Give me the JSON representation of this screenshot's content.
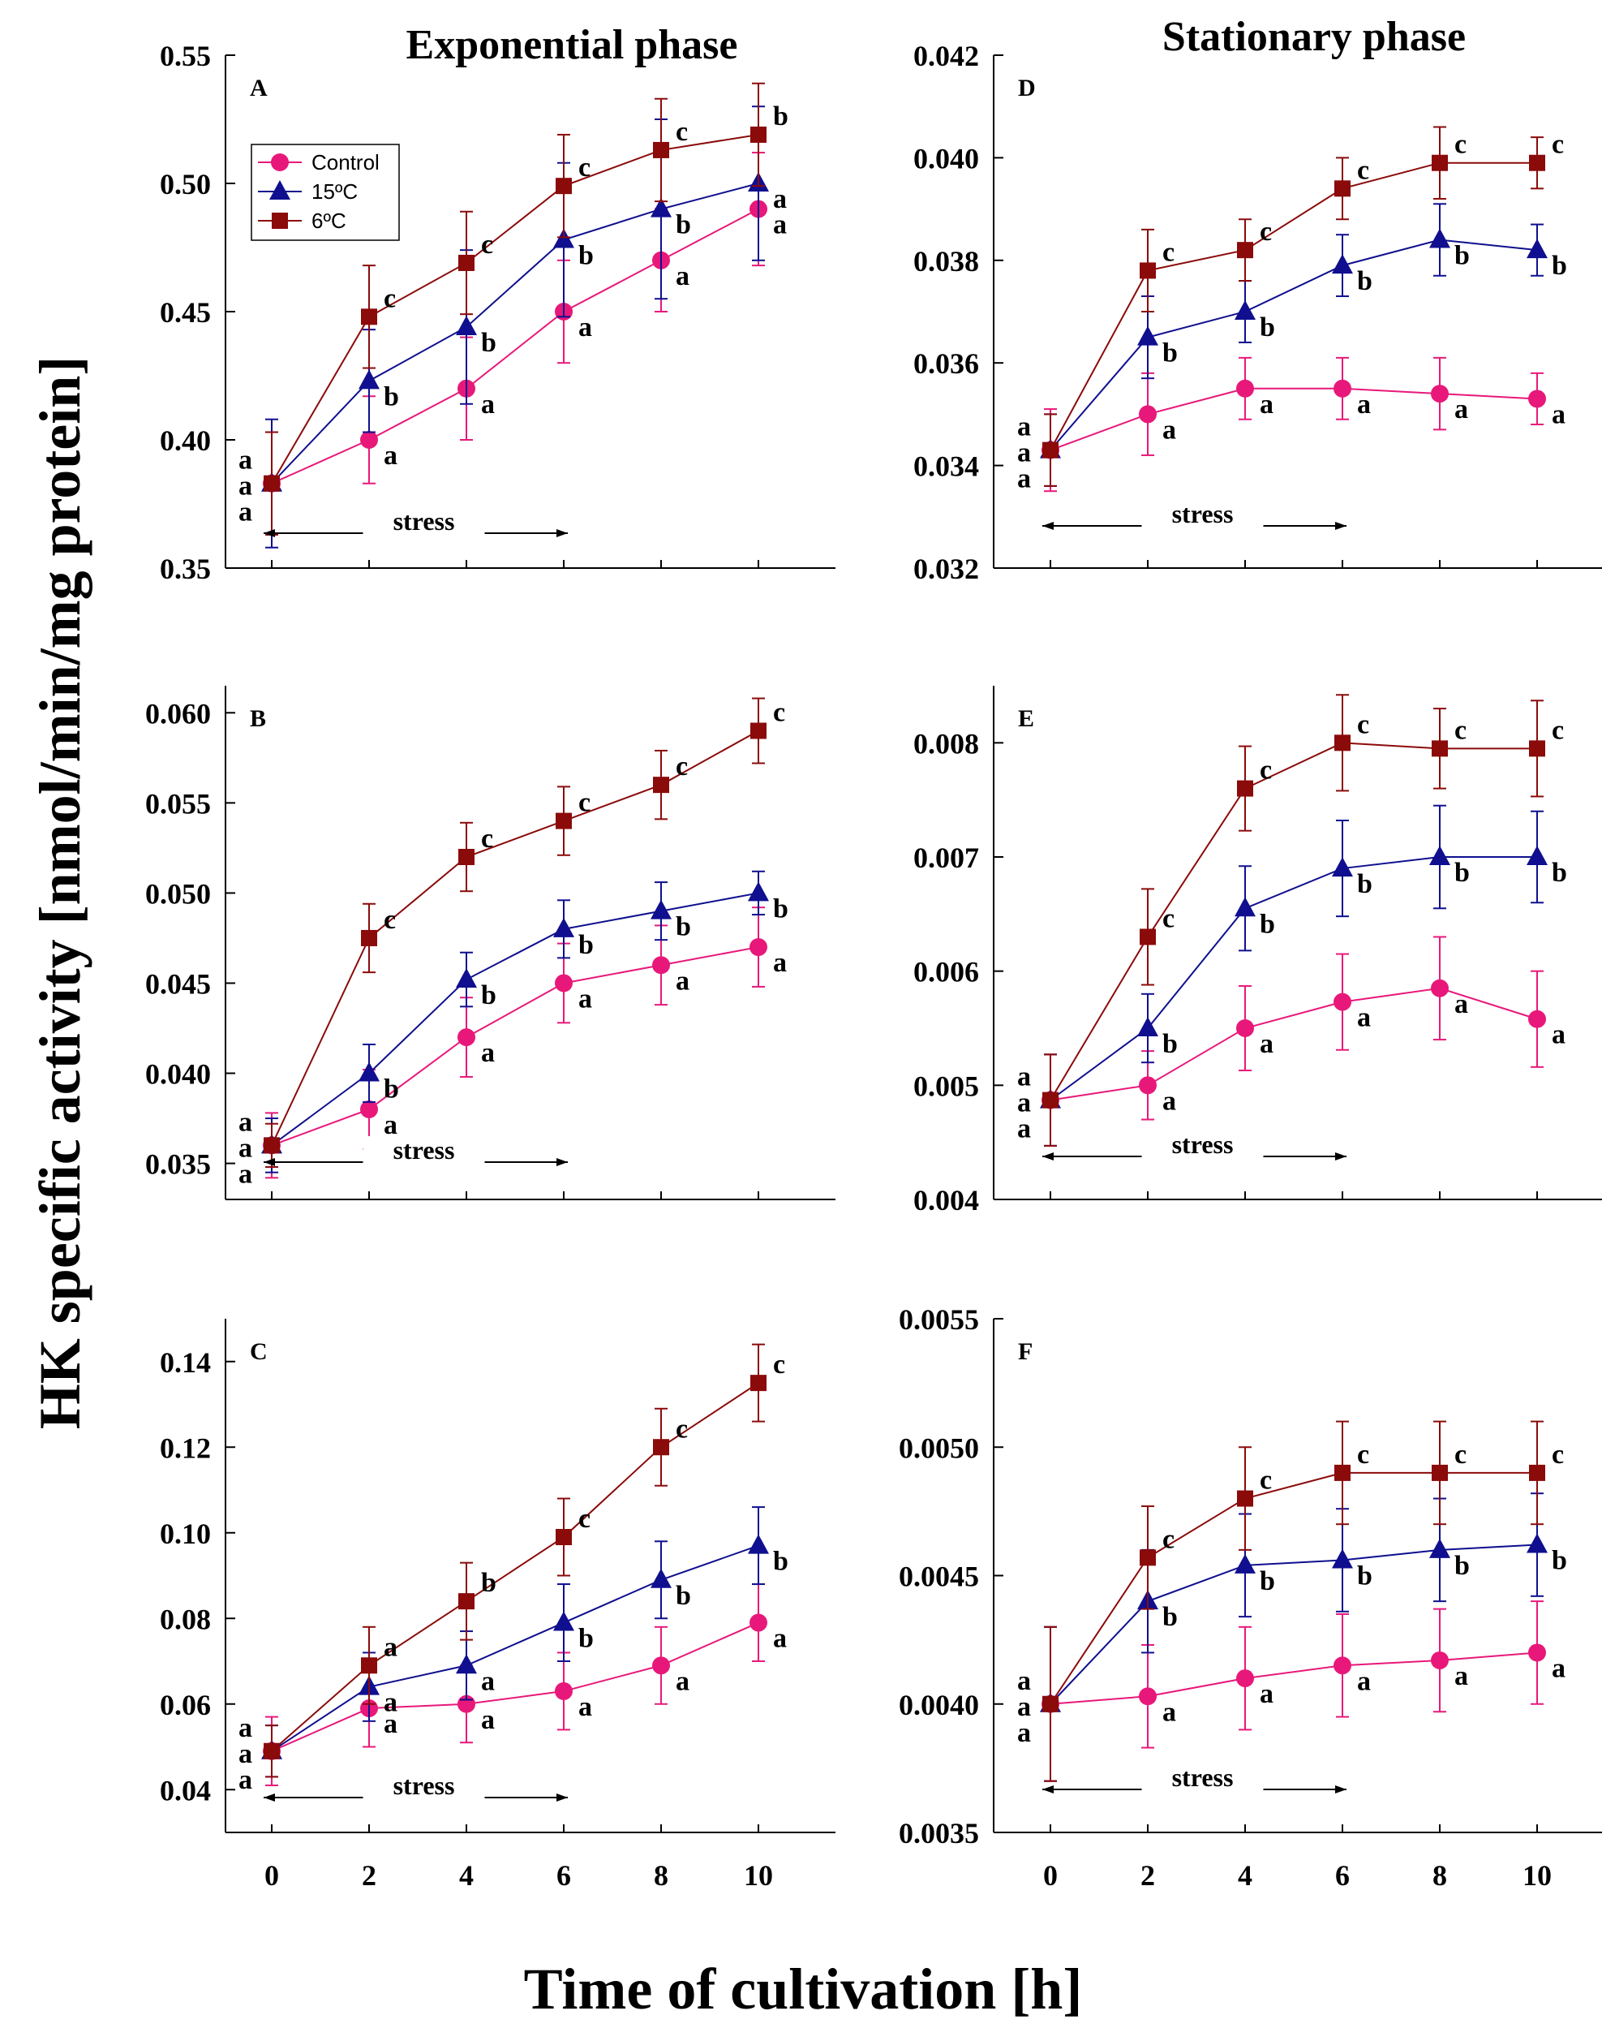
{
  "figure": {
    "col_titles": [
      "Exponential phase",
      "Stationary phase"
    ],
    "ylabel": "HK specific activity [nmol/min/mg protein]",
    "xlabel": "Time of cultivation [h]",
    "legend": [
      "Control",
      "15ºC",
      "6ºC"
    ],
    "stress_label": "stress"
  },
  "colors": {
    "control": "#e8187a",
    "c15": "#0f0f8f",
    "c6": "#8b0a0a"
  },
  "chart_data": [
    {
      "type": "line",
      "panel": "A",
      "title": "Exponential phase",
      "x": [
        0,
        2,
        4,
        6,
        8,
        10
      ],
      "ylim": [
        0.35,
        0.55
      ],
      "yticks": [
        "0.35",
        "0.40",
        "0.45",
        "0.50",
        "0.55"
      ],
      "series": [
        {
          "name": "Control",
          "values": [
            0.383,
            0.4,
            0.42,
            0.45,
            0.47,
            0.49
          ],
          "err": [
            0.02,
            0.017,
            0.02,
            0.02,
            0.02,
            0.022
          ],
          "letters": [
            "a",
            "a",
            "a",
            "a",
            "a",
            "a"
          ]
        },
        {
          "name": "15ºC",
          "values": [
            0.383,
            0.423,
            0.444,
            0.478,
            0.49,
            0.5
          ],
          "err": [
            0.025,
            0.02,
            0.03,
            0.03,
            0.035,
            0.03
          ],
          "letters": [
            "a",
            "b",
            "b",
            "b",
            "b",
            "a"
          ]
        },
        {
          "name": "6ºC",
          "values": [
            0.383,
            0.448,
            0.469,
            0.499,
            0.513,
            0.519
          ],
          "err": [
            0.02,
            0.02,
            0.02,
            0.02,
            0.02,
            0.02
          ],
          "letters": [
            "a",
            "c",
            "c",
            "c",
            "c",
            "b"
          ]
        }
      ]
    },
    {
      "type": "line",
      "panel": "B",
      "x": [
        0,
        2,
        4,
        6,
        8,
        10
      ],
      "ylim": [
        0.033,
        0.0615
      ],
      "yticks": [
        "0.035",
        "0.040",
        "0.045",
        "0.050",
        "0.055",
        "0.060"
      ],
      "series": [
        {
          "name": "Control",
          "values": [
            0.036,
            0.038,
            0.042,
            0.045,
            0.046,
            0.047
          ],
          "err": [
            0.0018,
            0.0022,
            0.0022,
            0.0022,
            0.0022,
            0.0022
          ],
          "letters": [
            "a",
            "a",
            "a",
            "a",
            "a",
            "a"
          ]
        },
        {
          "name": "15ºC",
          "values": [
            0.036,
            0.04,
            0.0452,
            0.048,
            0.049,
            0.05
          ],
          "err": [
            0.0015,
            0.0016,
            0.0015,
            0.0016,
            0.0016,
            0.0012
          ],
          "letters": [
            "a",
            "b",
            "b",
            "b",
            "b",
            "b"
          ]
        },
        {
          "name": "6ºC",
          "values": [
            0.036,
            0.0475,
            0.052,
            0.054,
            0.056,
            0.059
          ],
          "err": [
            0.0012,
            0.0019,
            0.0019,
            0.0019,
            0.0019,
            0.0018
          ],
          "letters": [
            "a",
            "c",
            "c",
            "c",
            "c",
            "c"
          ]
        }
      ]
    },
    {
      "type": "line",
      "panel": "C",
      "x": [
        0,
        2,
        4,
        6,
        8,
        10
      ],
      "ylim": [
        0.03,
        0.15
      ],
      "yticks": [
        "0.04",
        "0.06",
        "0.08",
        "0.10",
        "0.12",
        "0.14"
      ],
      "series": [
        {
          "name": "Control",
          "values": [
            0.049,
            0.059,
            0.06,
            0.063,
            0.069,
            0.079
          ],
          "err": [
            0.008,
            0.009,
            0.009,
            0.009,
            0.009,
            0.009
          ],
          "letters": [
            "a",
            "a",
            "a",
            "a",
            "a",
            "a"
          ]
        },
        {
          "name": "15ºC",
          "values": [
            0.049,
            0.064,
            0.069,
            0.079,
            0.089,
            0.097
          ],
          "err": [
            0.006,
            0.008,
            0.008,
            0.009,
            0.009,
            0.009
          ],
          "letters": [
            "a",
            "a",
            "a",
            "b",
            "b",
            "b"
          ]
        },
        {
          "name": "6ºC",
          "values": [
            0.049,
            0.069,
            0.084,
            0.099,
            0.12,
            0.135
          ],
          "err": [
            0.006,
            0.009,
            0.009,
            0.009,
            0.009,
            0.009
          ],
          "letters": [
            "a",
            "a",
            "b",
            "c",
            "c",
            "c"
          ]
        }
      ]
    },
    {
      "type": "line",
      "panel": "D",
      "title": "Stationary phase",
      "x": [
        0,
        2,
        4,
        6,
        8,
        10
      ],
      "ylim": [
        0.032,
        0.042
      ],
      "yticks": [
        "0.032",
        "0.034",
        "0.036",
        "0.038",
        "0.040",
        "0.042"
      ],
      "series": [
        {
          "name": "Control",
          "values": [
            0.0343,
            0.035,
            0.0355,
            0.0355,
            0.0354,
            0.0353
          ],
          "err": [
            0.0008,
            0.0008,
            0.0006,
            0.0006,
            0.0007,
            0.0005
          ],
          "letters": [
            "a",
            "a",
            "a",
            "a",
            "a",
            "a"
          ]
        },
        {
          "name": "15ºC",
          "values": [
            0.0343,
            0.0365,
            0.037,
            0.0379,
            0.0384,
            0.0382
          ],
          "err": [
            0.0007,
            0.0008,
            0.0006,
            0.0006,
            0.0007,
            0.0005
          ],
          "letters": [
            "a",
            "b",
            "b",
            "b",
            "b",
            "b"
          ]
        },
        {
          "name": "6ºC",
          "values": [
            0.0343,
            0.0378,
            0.0382,
            0.0394,
            0.0399,
            0.0399
          ],
          "err": [
            0.0007,
            0.0008,
            0.0006,
            0.0006,
            0.0007,
            0.0005
          ],
          "letters": [
            "a",
            "c",
            "c",
            "c",
            "c",
            "c"
          ]
        }
      ]
    },
    {
      "type": "line",
      "panel": "E",
      "x": [
        0,
        2,
        4,
        6,
        8,
        10
      ],
      "ylim": [
        0.004,
        0.0085
      ],
      "yticks": [
        "0.004",
        "0.005",
        "0.006",
        "0.007",
        "0.008"
      ],
      "series": [
        {
          "name": "Control",
          "values": [
            0.00487,
            0.005,
            0.0055,
            0.00573,
            0.00585,
            0.00558
          ],
          "err": [
            0.0004,
            0.0003,
            0.00037,
            0.00042,
            0.00045,
            0.00042
          ],
          "letters": [
            "a",
            "a",
            "a",
            "a",
            "a",
            "a"
          ]
        },
        {
          "name": "15ºC",
          "values": [
            0.00487,
            0.0055,
            0.00655,
            0.0069,
            0.007,
            0.007
          ],
          "err": [
            0.0004,
            0.0003,
            0.00037,
            0.00042,
            0.00045,
            0.0004
          ],
          "letters": [
            "a",
            "b",
            "b",
            "b",
            "b",
            "b"
          ]
        },
        {
          "name": "6ºC",
          "values": [
            0.00487,
            0.0063,
            0.0076,
            0.008,
            0.00795,
            0.00795
          ],
          "err": [
            0.0004,
            0.00042,
            0.00037,
            0.00042,
            0.00035,
            0.00042
          ],
          "letters": [
            "a",
            "c",
            "c",
            "c",
            "c",
            "c"
          ]
        }
      ]
    },
    {
      "type": "line",
      "panel": "F",
      "x": [
        0,
        2,
        4,
        6,
        8,
        10
      ],
      "ylim": [
        0.0035,
        0.0055
      ],
      "yticks": [
        "0.0035",
        "0.0040",
        "0.0045",
        "0.0050",
        "0.0055"
      ],
      "series": [
        {
          "name": "Control",
          "values": [
            0.004,
            0.00403,
            0.0041,
            0.00415,
            0.00417,
            0.0042
          ],
          "err": [
            0.0003,
            0.0002,
            0.0002,
            0.0002,
            0.0002,
            0.0002
          ],
          "letters": [
            "a",
            "a",
            "a",
            "a",
            "a",
            "a"
          ]
        },
        {
          "name": "15ºC",
          "values": [
            0.004,
            0.0044,
            0.00454,
            0.00456,
            0.0046,
            0.00462
          ],
          "err": [
            0.0003,
            0.0002,
            0.0002,
            0.0002,
            0.0002,
            0.0002
          ],
          "letters": [
            "a",
            "b",
            "b",
            "b",
            "b",
            "b"
          ]
        },
        {
          "name": "6ºC",
          "values": [
            0.004,
            0.00457,
            0.0048,
            0.0049,
            0.0049,
            0.0049
          ],
          "err": [
            0.0003,
            0.0002,
            0.0002,
            0.0002,
            0.0002,
            0.0002
          ],
          "letters": [
            "a",
            "c",
            "c",
            "c",
            "c",
            "c"
          ]
        }
      ]
    }
  ]
}
